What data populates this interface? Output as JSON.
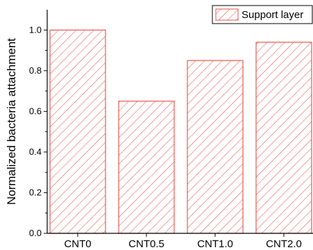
{
  "chart_data": {
    "type": "bar",
    "title": "",
    "xlabel": "",
    "ylabel": "Normalized bacteria attachment",
    "categories": [
      "CNT0",
      "CNT0.5",
      "CNT1.0",
      "CNT2.0"
    ],
    "series": [
      {
        "name": "Support layer",
        "values": [
          1.0,
          0.65,
          0.85,
          0.94
        ]
      }
    ],
    "ylim": [
      0,
      1.1
    ],
    "yticks": [
      "0.0",
      "0.2",
      "0.4",
      "0.6",
      "0.8",
      "1.0"
    ],
    "ytick_values": [
      0,
      0.2,
      0.4,
      0.6,
      0.8,
      1.0
    ],
    "grid": false,
    "legend_position": "top-right",
    "bar_fill": "hatched",
    "colors": {
      "bar_stroke": "#e8574f",
      "axis": "#000000"
    }
  }
}
